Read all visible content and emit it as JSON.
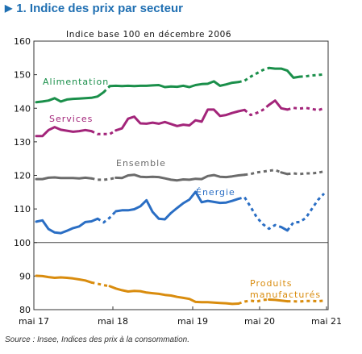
{
  "title": "1. Indice des prix par secteur",
  "source": "Source : Insee, Indices des prix à la consommation.",
  "chart_data": {
    "type": "line",
    "subtitle": "Indice base 100 en décembre 2006",
    "x_tick_labels": [
      "mai 17",
      "mai 18",
      "mai 19",
      "mai 20",
      "mai 21"
    ],
    "ylim": [
      80,
      160
    ],
    "y_ticks": [
      80,
      90,
      100,
      110,
      120,
      130,
      140,
      150,
      160
    ],
    "grid": false,
    "reference_line": 100,
    "legend": "inline labels",
    "note": "dotted segments denote periods with partially imputed prices",
    "series": [
      {
        "name": "Alimentation",
        "color": "#1a8f4a",
        "label_lines": [
          "Alimentation"
        ],
        "values": [
          141.8,
          142.0,
          142.3,
          143.0,
          142.0,
          142.6,
          142.8,
          142.9,
          143.0,
          143.1,
          143.5,
          144.8,
          146.6,
          146.7,
          146.6,
          146.7,
          146.6,
          146.7,
          146.7,
          146.8,
          146.9,
          146.3,
          146.5,
          146.4,
          146.7,
          146.3,
          146.9,
          147.2,
          147.3,
          148.0,
          146.7,
          147.1,
          147.6,
          147.8,
          148.2,
          149.4,
          150.4,
          151.4,
          152.0,
          151.8,
          151.8,
          151.2,
          149.1,
          149.4,
          149.5,
          149.8,
          149.9,
          150.1
        ],
        "dotted_ranges": [
          [
            11,
            12
          ],
          [
            33,
            38
          ],
          [
            43,
            47
          ]
        ]
      },
      {
        "name": "Services",
        "color": "#a3257a",
        "label_lines": [
          "Services"
        ],
        "values": [
          131.7,
          131.7,
          133.5,
          134.4,
          133.6,
          133.3,
          133.0,
          133.2,
          133.5,
          133.2,
          132.3,
          132.3,
          132.3,
          133.4,
          134.0,
          136.9,
          137.5,
          135.5,
          135.4,
          135.7,
          135.4,
          135.9,
          135.3,
          134.7,
          135.1,
          134.9,
          136.4,
          136.0,
          139.6,
          139.6,
          137.7,
          138.0,
          138.6,
          139.1,
          139.5,
          138.0,
          138.6,
          139.5,
          141.0,
          142.3,
          140.0,
          139.6,
          140.1,
          139.9,
          140.1,
          139.8,
          139.4,
          140.0
        ],
        "dotted_ranges": [
          [
            9,
            13
          ],
          [
            34,
            38
          ],
          [
            41,
            47
          ]
        ]
      },
      {
        "name": "Ensemble",
        "color": "#6b6b6b",
        "label_lines": [
          "Ensemble"
        ],
        "values": [
          118.9,
          118.9,
          119.3,
          119.4,
          119.2,
          119.2,
          119.2,
          119.1,
          119.3,
          119.1,
          118.7,
          118.7,
          118.9,
          119.3,
          119.2,
          120.0,
          120.2,
          119.6,
          119.5,
          119.6,
          119.5,
          119.1,
          118.7,
          118.5,
          118.8,
          118.7,
          119.0,
          118.9,
          119.8,
          120.1,
          119.6,
          119.5,
          119.7,
          120.0,
          120.2,
          120.4,
          120.9,
          121.1,
          121.4,
          121.6,
          120.9,
          120.4,
          120.6,
          120.4,
          120.6,
          120.6,
          120.8,
          121.2
        ],
        "dotted_ranges": [
          [
            9,
            13
          ],
          [
            34,
            40
          ],
          [
            41,
            47
          ]
        ]
      },
      {
        "name": "Énergie",
        "color": "#2a6ec4",
        "label_lines": [
          "Énergie"
        ],
        "values": [
          106.2,
          106.6,
          104.0,
          103.0,
          102.8,
          103.5,
          104.3,
          104.8,
          106.1,
          106.3,
          107.1,
          106.0,
          107.4,
          109.3,
          109.6,
          109.6,
          109.9,
          110.8,
          112.6,
          109.1,
          107.1,
          106.9,
          108.8,
          110.3,
          111.7,
          112.8,
          115.1,
          112.0,
          112.4,
          112.1,
          111.8,
          111.9,
          112.4,
          113.0,
          113.5,
          110.6,
          107.5,
          105.5,
          104.1,
          105.2,
          104.6,
          103.6,
          106.0,
          106.1,
          107.3,
          110.0,
          112.7,
          114.6
        ],
        "dotted_ranges": [
          [
            10,
            13
          ],
          [
            33,
            40
          ],
          [
            41,
            47
          ]
        ]
      },
      {
        "name": "Produits manufacturés",
        "color": "#d98c0e",
        "label_lines": [
          "Produits",
          "manufacturés"
        ],
        "values": [
          90.1,
          90.0,
          89.7,
          89.5,
          89.6,
          89.5,
          89.3,
          89.0,
          88.7,
          88.1,
          87.7,
          87.3,
          87.0,
          86.3,
          85.8,
          85.4,
          85.6,
          85.5,
          85.1,
          84.9,
          84.7,
          84.4,
          84.2,
          83.8,
          83.5,
          83.2,
          82.3,
          82.2,
          82.2,
          82.1,
          82.0,
          81.9,
          81.7,
          81.8,
          82.4,
          82.7,
          82.4,
          82.9,
          83.0,
          82.9,
          82.7,
          82.5,
          82.5,
          82.4,
          82.6,
          82.6,
          82.5,
          82.7
        ],
        "dotted_ranges": [
          [
            9,
            12
          ],
          [
            33,
            38
          ],
          [
            41,
            47
          ]
        ]
      }
    ]
  }
}
